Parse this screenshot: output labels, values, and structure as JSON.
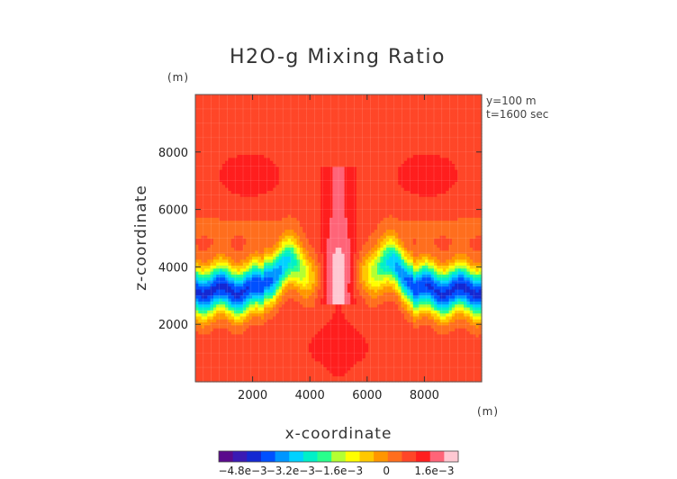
{
  "chart_data": {
    "type": "heatmap",
    "title": "H2O-g Mixing Ratio",
    "xlabel": "x-coordinate",
    "ylabel": "z-coordinate",
    "x_unit": "(m)",
    "y_unit": "(m)",
    "xlim": [
      0,
      10000
    ],
    "ylim": [
      0,
      10000
    ],
    "x_ticks": [
      2000,
      4000,
      6000,
      8000
    ],
    "y_ticks": [
      2000,
      4000,
      6000,
      8000
    ],
    "x_tick_labels": [
      "2000",
      "4000",
      "6000",
      "8000"
    ],
    "y_tick_labels": [
      "2000",
      "4000",
      "6000",
      "8000"
    ],
    "annotations": [
      "y=100  m",
      "t=1600 sec"
    ],
    "colorbar": {
      "min": -0.0056,
      "max": 0.0024,
      "tick_values": [
        -0.0048,
        -0.0032,
        -0.0016,
        0,
        0.0016
      ],
      "tick_labels": [
        "−4.8e−3",
        "−3.2e−3",
        "−1.6e−3",
        "0",
        "1.6e−3"
      ],
      "colors": [
        "#5a0a8c",
        "#3a1ab4",
        "#1428d2",
        "#0050ff",
        "#0096ff",
        "#00d2ff",
        "#00f0c8",
        "#28ff8c",
        "#b4ff32",
        "#ffff00",
        "#ffc800",
        "#ff9600",
        "#ff6e1e",
        "#ff4628",
        "#ff1e1e",
        "#ff6478",
        "#ffc8d2"
      ]
    },
    "background_value": 0.0007,
    "features": [
      {
        "feature": "moist central plume",
        "x": 5000,
        "z_range": [
          2700,
          7500
        ],
        "max_value": 0.0022
      },
      {
        "feature": "moist anvil left",
        "x": 1900,
        "z": 7200,
        "max_value": 0.0014
      },
      {
        "feature": "moist anvil right",
        "x": 8100,
        "z": 7200,
        "max_value": 0.0014
      },
      {
        "feature": "dry layer",
        "z": 3200,
        "min_value": -0.005
      },
      {
        "feature": "slightly dry band",
        "z": 5400,
        "value": -0.0001
      }
    ],
    "grid": true,
    "colorbar_placement": "bottom",
    "annotation_placement": "top-right"
  }
}
